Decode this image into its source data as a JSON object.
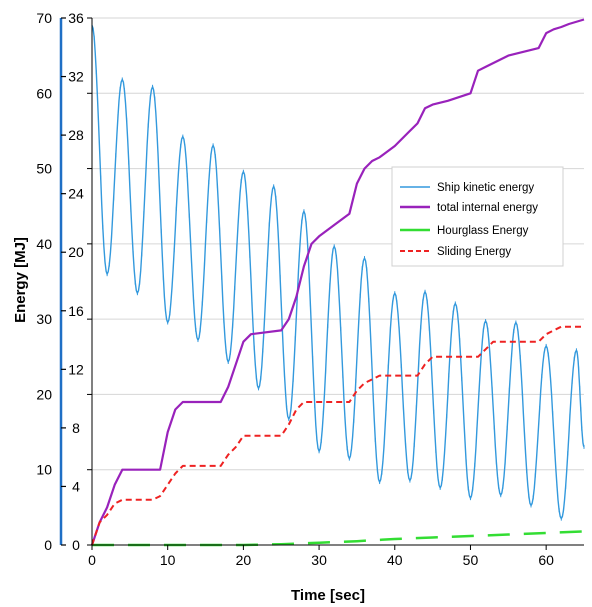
{
  "chart_data": {
    "type": "line",
    "title": "",
    "xlabel": "Time [sec]",
    "ylabel": "Energy [MJ]",
    "xlim": [
      0,
      65
    ],
    "ylim": [
      0,
      70
    ],
    "y2lim": [
      0,
      36
    ],
    "x_ticks": [
      "0",
      "10",
      "20",
      "30",
      "40",
      "50",
      "60"
    ],
    "y_ticks": [
      "0",
      "10",
      "20",
      "30",
      "40",
      "50",
      "60",
      "70"
    ],
    "y2_ticks": [
      "0",
      "4",
      "8",
      "12",
      "16",
      "20",
      "24",
      "28",
      "32",
      "36"
    ],
    "grid": "horizontal",
    "legend_position": "right",
    "series": [
      {
        "name": "Ship kinetic energy",
        "axis": "right",
        "color": "#3399dd",
        "style": "solid-with-markers",
        "x": [
          0,
          2,
          4,
          6,
          8,
          10,
          12,
          14,
          16,
          18,
          20,
          22,
          24,
          26,
          28,
          30,
          32,
          34,
          36,
          38,
          40,
          42,
          44,
          46,
          48,
          50,
          52,
          54,
          56,
          58,
          60,
          62,
          64,
          65
        ],
        "y": [
          35.5,
          18.5,
          31.8,
          17.2,
          31.3,
          15.2,
          27.9,
          14,
          27.3,
          12.5,
          25.5,
          10.7,
          24.5,
          8.6,
          22.8,
          6.4,
          20.4,
          5.9,
          19.6,
          4.3,
          17.2,
          4.4,
          17.3,
          3.9,
          16.5,
          3.2,
          15.3,
          3.4,
          15.2,
          2.7,
          13.6,
          1.8,
          13.3,
          6.7
        ]
      },
      {
        "name": "total internal energy",
        "axis": "left",
        "color": "#9922bb",
        "style": "solid",
        "x": [
          0,
          1,
          2,
          3,
          4,
          6,
          9,
          10,
          11,
          12,
          13,
          17,
          18,
          19,
          20,
          21,
          25,
          26,
          27,
          28,
          29,
          30,
          32,
          34,
          35,
          36,
          37,
          38,
          40,
          42,
          43,
          44,
          45,
          47,
          50,
          51,
          52,
          55,
          59,
          60,
          61,
          62,
          63,
          65
        ],
        "y": [
          0,
          3,
          5,
          8,
          10,
          10,
          10,
          15,
          18,
          19,
          19,
          19,
          21,
          24,
          27,
          28,
          28.5,
          30,
          33,
          37,
          40,
          41,
          42.5,
          44,
          48,
          50,
          51,
          51.5,
          53,
          55,
          56,
          58,
          58.5,
          59,
          60,
          63,
          63.5,
          65,
          66,
          68,
          68.5,
          68.8,
          69.2,
          69.8
        ]
      },
      {
        "name": "Hourglass Energy",
        "axis": "left",
        "color": "#33dd33",
        "style": "dashed",
        "x": [
          0,
          10,
          20,
          25,
          30,
          35,
          40,
          45,
          50,
          55,
          60,
          65
        ],
        "y": [
          0,
          0,
          0,
          0.1,
          0.3,
          0.5,
          0.8,
          1.0,
          1.2,
          1.4,
          1.6,
          1.8
        ]
      },
      {
        "name": "Sliding Energy",
        "axis": "left",
        "color": "#ee2222",
        "style": "dashed",
        "x": [
          0,
          1,
          2,
          3,
          4,
          8,
          9,
          10,
          11,
          12,
          17,
          18,
          19,
          20,
          25,
          26,
          27,
          28,
          34,
          35,
          36,
          37,
          38,
          43,
          44,
          45,
          51,
          52,
          53,
          59,
          60,
          61,
          62,
          63,
          65
        ],
        "y": [
          0,
          3,
          4,
          5.5,
          6,
          6,
          6.5,
          8,
          9.5,
          10.5,
          10.5,
          12,
          13,
          14.5,
          14.5,
          16,
          18,
          19,
          19,
          20.5,
          21.5,
          22,
          22.5,
          22.5,
          24,
          25,
          25,
          26,
          27,
          27,
          28,
          28.5,
          29,
          29,
          29
        ]
      }
    ]
  }
}
